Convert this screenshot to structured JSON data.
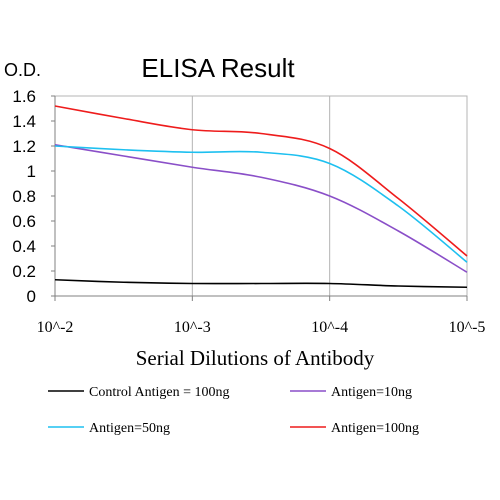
{
  "chart_data": {
    "type": "line",
    "title": "ELISA Result",
    "ylabel": "O.D.",
    "xlabel": "Serial Dilutions of Antibody",
    "categories": [
      "10^-2",
      "10^-3",
      "10^-4",
      "10^-5"
    ],
    "x": [
      0,
      0.5,
      1,
      1.5,
      2,
      2.5,
      3
    ],
    "ylim": [
      0,
      1.6
    ],
    "yticks": [
      "0",
      "0.2",
      "0.4",
      "0.6",
      "0.8",
      "1",
      "1.2",
      "1.4",
      "1.6"
    ],
    "grid": "vertical",
    "legend_position": "bottom",
    "series": [
      {
        "name": "Control Antigen = 100ng",
        "color": "#000000",
        "values": [
          0.13,
          0.11,
          0.1,
          0.1,
          0.1,
          0.08,
          0.07
        ]
      },
      {
        "name": "Antigen=10ng",
        "color": "#8a4fc8",
        "values": [
          1.21,
          1.12,
          1.03,
          0.95,
          0.8,
          0.52,
          0.19
        ]
      },
      {
        "name": "Antigen=50ng",
        "color": "#1ec0f0",
        "values": [
          1.2,
          1.17,
          1.15,
          1.15,
          1.06,
          0.72,
          0.27
        ]
      },
      {
        "name": "Antigen=100ng",
        "color": "#ee1c1c",
        "values": [
          1.52,
          1.42,
          1.33,
          1.3,
          1.18,
          0.78,
          0.32
        ]
      }
    ]
  }
}
